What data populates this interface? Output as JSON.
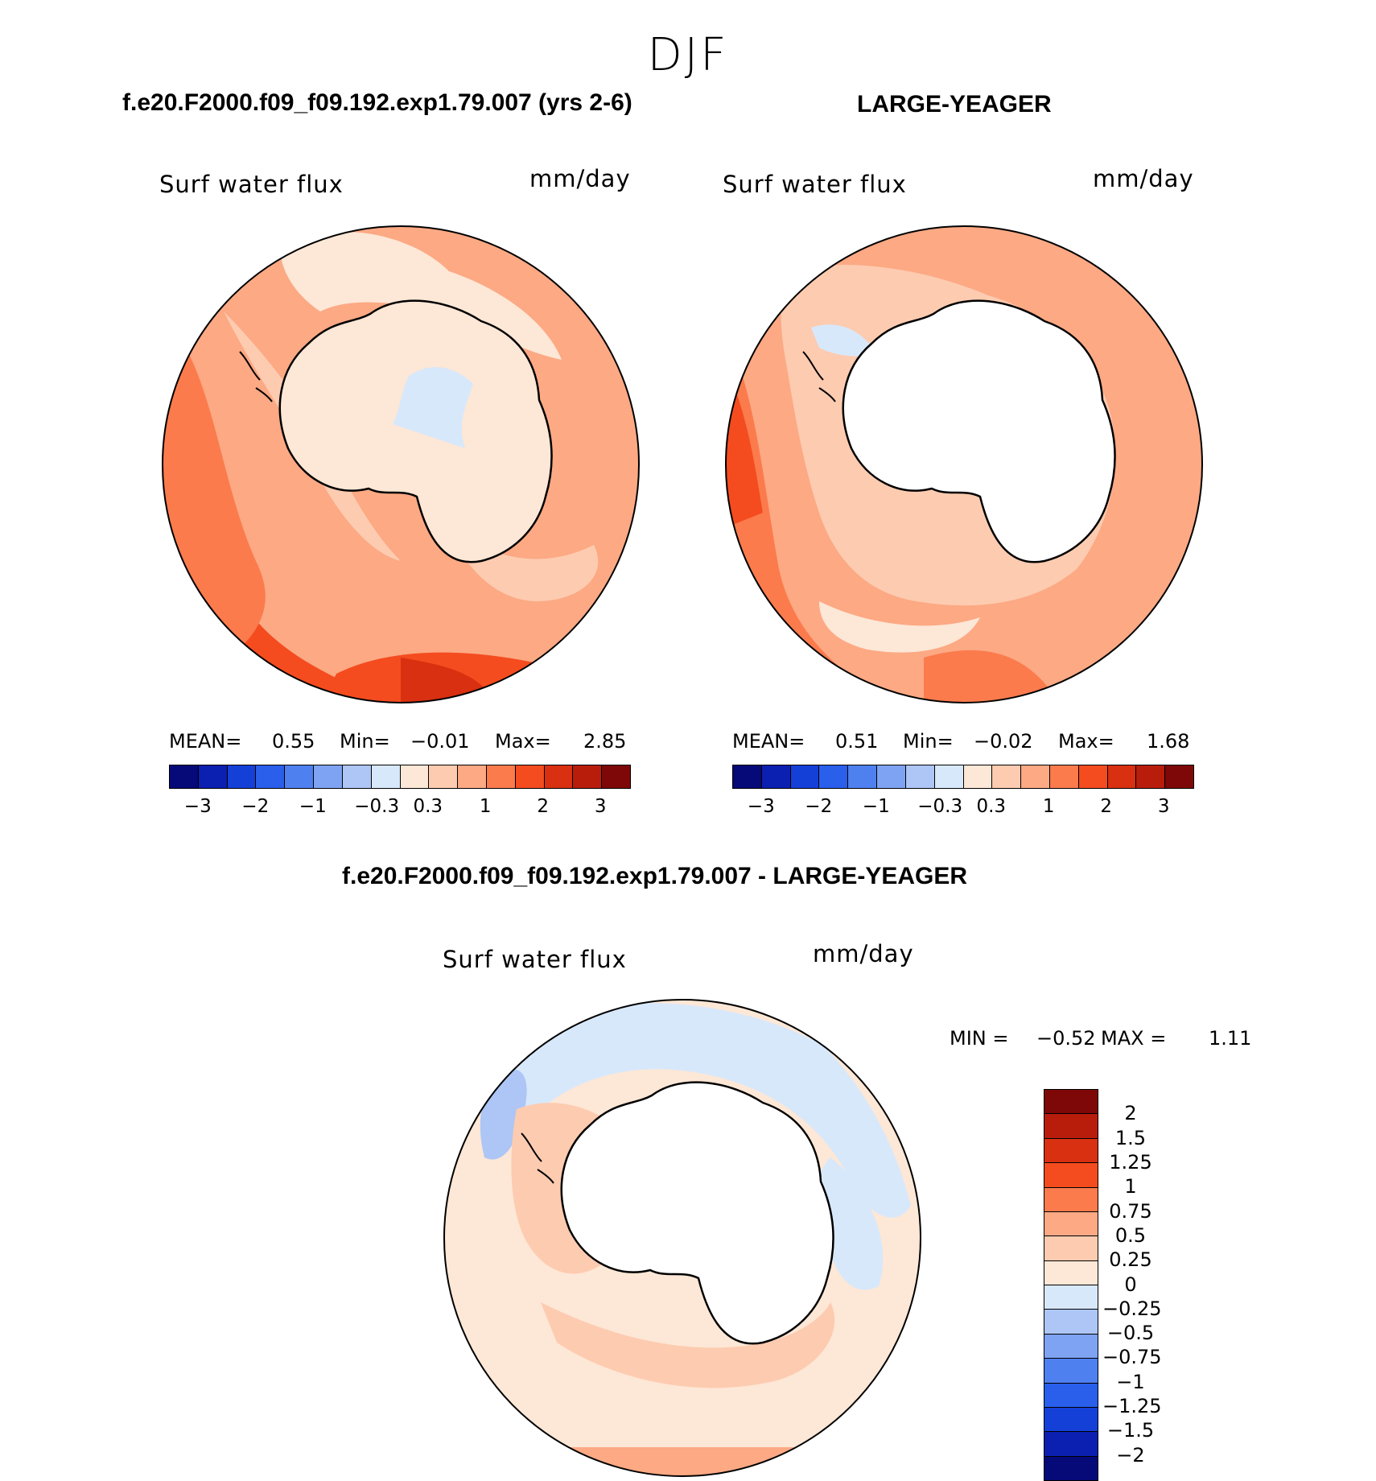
{
  "season": "DJF",
  "panels": [
    {
      "case_title": "f.e20.F2000.f09_f09.192.exp1.79.007 (yrs 2-6)",
      "variable": "Surf water flux",
      "units": "mm/day",
      "stats": {
        "mean_label": "MEAN=",
        "mean": "0.55",
        "min_label": "Min=",
        "min": "−0.01",
        "max_label": "Max=",
        "max": "2.85"
      }
    },
    {
      "case_title": "LARGE-YEAGER",
      "variable": "Surf water flux",
      "units": "mm/day",
      "stats": {
        "mean_label": "MEAN=",
        "mean": "0.51",
        "min_label": "Min=",
        "min": "−0.02",
        "max_label": "Max=",
        "max": "1.68"
      }
    }
  ],
  "diff_panel": {
    "case_title": "f.e20.F2000.f09_f09.192.exp1.79.007 - LARGE-YEAGER",
    "variable": "Surf water flux",
    "units": "mm/day",
    "stats": {
      "min_label": "MIN =",
      "min": "−0.52",
      "max_label": "MAX =",
      "max": "1.11"
    }
  },
  "colorbar": {
    "colors": [
      "#050a78",
      "#0b1fb0",
      "#1440d8",
      "#2a5fec",
      "#4f80f0",
      "#7fa3f3",
      "#adc6f6",
      "#d8e8fb",
      "#fde7d6",
      "#fdcbb0",
      "#fca984",
      "#fb7b4d",
      "#f44c1f",
      "#d83010",
      "#b81d0c",
      "#7e0707"
    ],
    "ticks": [
      "−3",
      "−2",
      "−1",
      "−0.3",
      "0.3",
      "1",
      "2",
      "3"
    ]
  },
  "diff_colorbar": {
    "colors": [
      "#7e0707",
      "#b81d0c",
      "#d83010",
      "#f44c1f",
      "#fb7b4d",
      "#fca984",
      "#fdcbb0",
      "#fde7d6",
      "#d8e8fb",
      "#adc6f6",
      "#7fa3f3",
      "#4f80f0",
      "#2a5fec",
      "#1440d8",
      "#0b1fb0",
      "#050a78"
    ],
    "ticks": [
      "2",
      "1.5",
      "1.25",
      "1",
      "0.75",
      "0.5",
      "0.25",
      "0",
      "−0.25",
      "−0.5",
      "−0.75",
      "−1",
      "−1.25",
      "−1.5",
      "−2"
    ]
  },
  "land_color": "#ffffff",
  "ocean_base_color": "#fca984"
}
